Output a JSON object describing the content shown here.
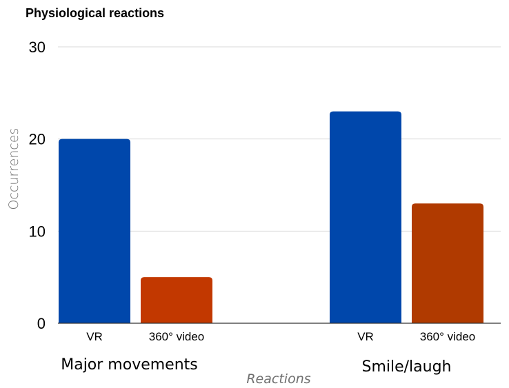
{
  "chart_data": {
    "type": "bar",
    "title": "Physiological reactions",
    "xlabel": "Reactions",
    "ylabel": "Occurrences",
    "ylim": [
      0,
      30
    ],
    "yticks": [
      0,
      10,
      20,
      30
    ],
    "grid": true,
    "groups": [
      {
        "label": "Major movements",
        "bars": [
          {
            "label": "VR",
            "value": 20,
            "color": "#0047AB"
          },
          {
            "label": "360° video",
            "value": 5,
            "color": "#C23800"
          }
        ]
      },
      {
        "label": "Smile/laugh",
        "bars": [
          {
            "label": "VR",
            "value": 23,
            "color": "#0047AB"
          },
          {
            "label": "360° video",
            "value": 13,
            "color": "#B03A00"
          }
        ]
      }
    ]
  }
}
